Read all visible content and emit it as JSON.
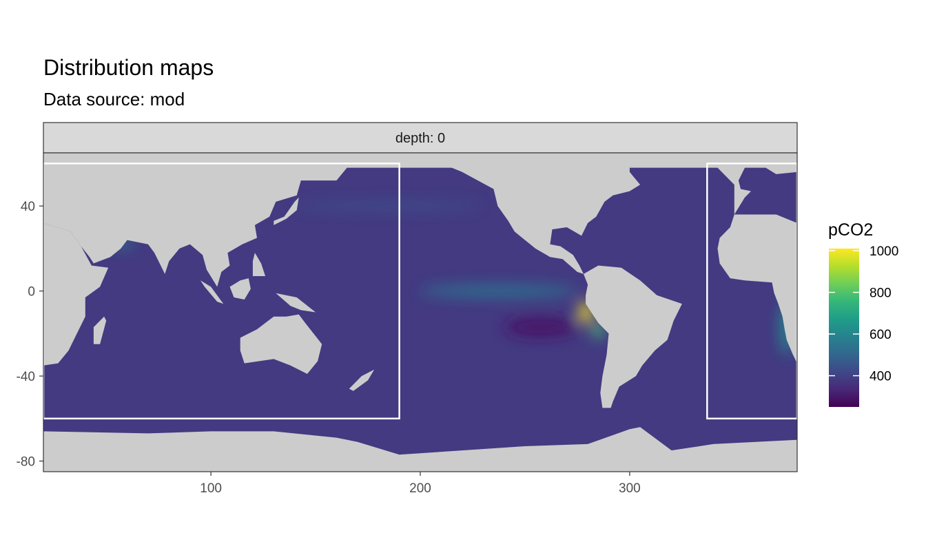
{
  "title": "Distribution maps",
  "subtitle": "Data source:  mod",
  "facet": {
    "label": "depth: 0"
  },
  "legend": {
    "title": "pCO2",
    "ticks": [
      {
        "value": 1000,
        "label": "1000"
      },
      {
        "value": 800,
        "label": "800"
      },
      {
        "value": 600,
        "label": "600"
      },
      {
        "value": 400,
        "label": "400"
      }
    ],
    "range": [
      250,
      1010
    ],
    "palette": [
      "#440154",
      "#482878",
      "#3e4989",
      "#31688e",
      "#26828e",
      "#1f9e89",
      "#35b779",
      "#6ece58",
      "#b5de2b",
      "#fde725"
    ]
  },
  "chart_data": {
    "type": "heatmap",
    "title": "Distribution maps",
    "subtitle": "Data source:  mod",
    "xlim": [
      20,
      380
    ],
    "ylim": [
      -85,
      65
    ],
    "x_ticks": [
      {
        "value": 100,
        "label": "100"
      },
      {
        "value": 200,
        "label": "200"
      },
      {
        "value": 300,
        "label": "300"
      }
    ],
    "y_ticks": [
      {
        "value": 40,
        "label": "40"
      },
      {
        "value": 0,
        "label": "0"
      },
      {
        "value": -40,
        "label": "-40"
      },
      {
        "value": -80,
        "label": "-80"
      }
    ],
    "grid": false,
    "background_color": "#cccccc",
    "ocean_base_value": 380,
    "features": [
      {
        "name": "equatorial-pacific-upwelling",
        "lon": [
          200,
          275
        ],
        "lat": [
          -3,
          3
        ],
        "value": 520
      },
      {
        "name": "peru-coastal-upwelling",
        "lon": [
          276,
          282
        ],
        "lat": [
          -15,
          -5
        ],
        "value": 1000
      },
      {
        "name": "chile-coastal-upwelling",
        "lon": [
          282,
          288
        ],
        "lat": [
          -22,
          -15
        ],
        "value": 780
      },
      {
        "name": "benguela-upwelling",
        "lon": [
          372,
          378
        ],
        "lat": [
          -30,
          -5
        ],
        "value": 620
      },
      {
        "name": "arabian-sea",
        "lon": [
          55,
          62
        ],
        "lat": [
          20,
          25
        ],
        "value": 560
      },
      {
        "name": "north-pacific-band",
        "lon": [
          140,
          230
        ],
        "lat": [
          38,
          42
        ],
        "value": 430
      },
      {
        "name": "south-pacific-gyre-low",
        "lon": [
          240,
          275
        ],
        "lat": [
          -22,
          -12
        ],
        "value": 300
      }
    ],
    "region_boxes": [
      {
        "lon": [
          20,
          190
        ],
        "lat": [
          -60,
          60
        ]
      },
      {
        "lon": [
          337,
          380
        ],
        "lat": [
          -60,
          60
        ]
      }
    ],
    "color_scale": {
      "name": "viridis",
      "min": 250,
      "max": 1010,
      "label": "pCO2"
    }
  }
}
